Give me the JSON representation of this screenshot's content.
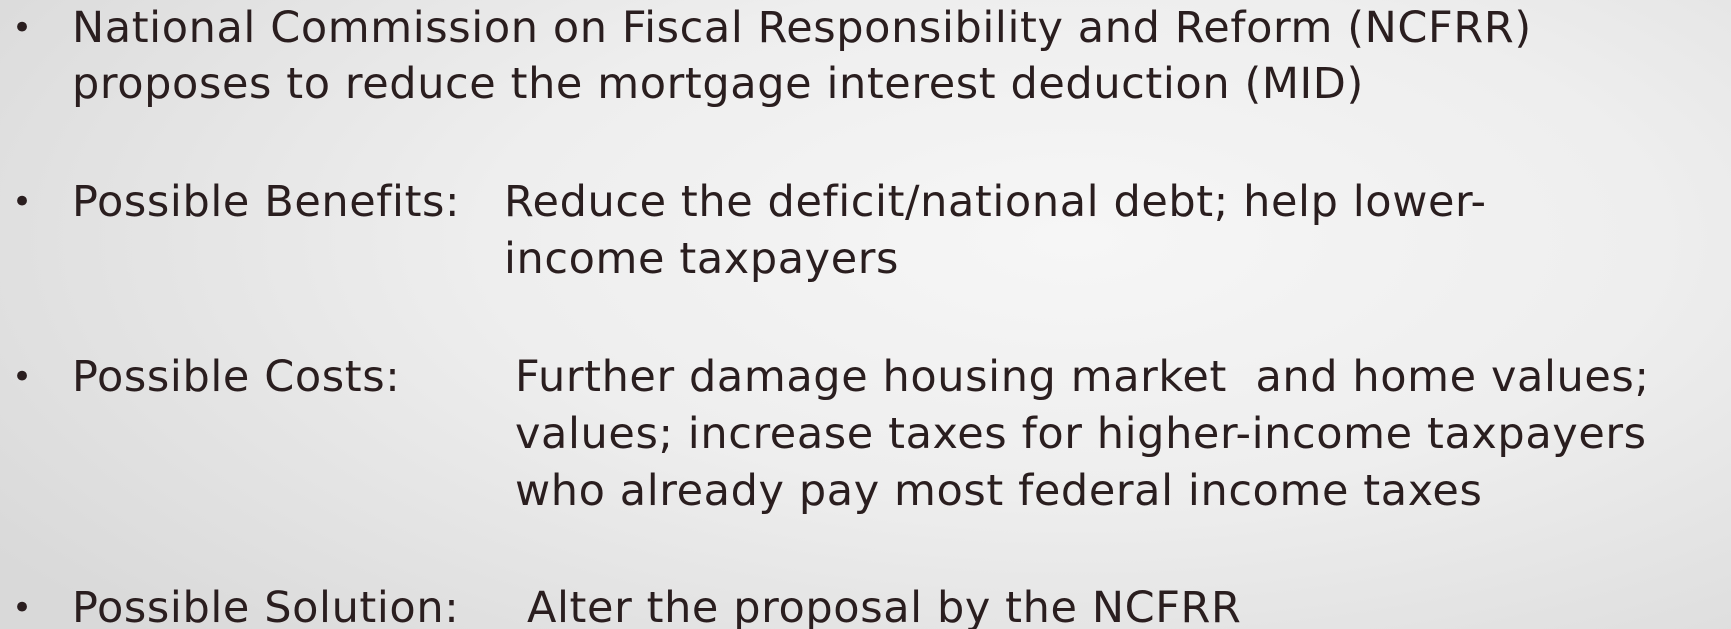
{
  "bullets": [
    {
      "lines": [
        "National Commission on Fiscal Responsibility and Reform (NCFRR)",
        "proposes to reduce the mortgage interest deduction (MID)"
      ]
    },
    {
      "label": "Possible Benefits:",
      "lines": [
        "Reduce the deficit/national debt; help lower-",
        "income taxpayers"
      ]
    },
    {
      "label": "Possible Costs:",
      "lines": [
        "Further damage housing market  and home values;",
        "values; increase taxes for higher-income taxpayers",
        "who already pay most federal income taxes"
      ]
    },
    {
      "label": "Possible Solution:",
      "lines": [
        "Alter the proposal by the NCFRR"
      ]
    }
  ]
}
